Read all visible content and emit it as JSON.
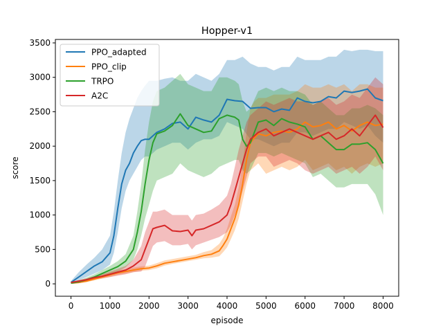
{
  "chart_data": {
    "type": "line",
    "title": "Hopper-v1",
    "xlabel": "episode",
    "ylabel": "score",
    "xlim": [
      -400,
      8400
    ],
    "ylim": [
      -180,
      3550
    ],
    "xticks": [
      0,
      1000,
      2000,
      3000,
      4000,
      5000,
      6000,
      7000,
      8000
    ],
    "yticks": [
      0,
      500,
      1000,
      1500,
      2000,
      2500,
      3000,
      3500
    ],
    "grid": false,
    "legend": "top-left",
    "series": [
      {
        "name": "PPO_adapted",
        "color": "#1f77b4",
        "x": [
          0,
          200,
          400,
          600,
          800,
          1000,
          1100,
          1200,
          1300,
          1400,
          1500,
          1600,
          1700,
          1800,
          1900,
          2000,
          2200,
          2400,
          2600,
          2800,
          3000,
          3200,
          3400,
          3600,
          3800,
          4000,
          4200,
          4400,
          4600,
          4800,
          5000,
          5200,
          5400,
          5600,
          5800,
          6000,
          6200,
          6400,
          6600,
          6800,
          7000,
          7200,
          7400,
          7600,
          7800,
          8000
        ],
        "y": [
          20,
          100,
          180,
          260,
          320,
          450,
          700,
          1100,
          1450,
          1650,
          1750,
          1900,
          2000,
          2080,
          2100,
          2100,
          2200,
          2250,
          2330,
          2350,
          2250,
          2420,
          2380,
          2350,
          2450,
          2680,
          2660,
          2650,
          2550,
          2560,
          2560,
          2500,
          2540,
          2520,
          2700,
          2650,
          2630,
          2650,
          2720,
          2700,
          2800,
          2780,
          2800,
          2830,
          2700,
          2660
        ],
        "lower": [
          10,
          50,
          100,
          150,
          200,
          280,
          450,
          750,
          1100,
          1350,
          1500,
          1600,
          1700,
          1800,
          1850,
          1850,
          1950,
          2000,
          2050,
          2050,
          1950,
          2050,
          2100,
          2100,
          2150,
          2350,
          2300,
          2250,
          2100,
          2100,
          2050,
          2000,
          2050,
          2050,
          2200,
          2200,
          2150,
          2200,
          2250,
          2250,
          2350,
          2300,
          2250,
          2300,
          2150,
          2050
        ],
        "upper": [
          40,
          170,
          280,
          380,
          500,
          700,
          1050,
          1500,
          1900,
          2200,
          2400,
          2550,
          2700,
          2800,
          2880,
          2950,
          2950,
          2980,
          3000,
          2950,
          2950,
          3050,
          3000,
          2950,
          3050,
          3250,
          3250,
          3300,
          3200,
          3150,
          3150,
          3100,
          3150,
          3150,
          3300,
          3250,
          3250,
          3250,
          3300,
          3300,
          3400,
          3380,
          3400,
          3400,
          3380,
          3380
        ]
      },
      {
        "name": "PPO_clip",
        "color": "#ff7f0e",
        "x": [
          0,
          200,
          400,
          600,
          800,
          1000,
          1200,
          1400,
          1600,
          1800,
          2000,
          2200,
          2400,
          2600,
          2800,
          3000,
          3200,
          3400,
          3600,
          3800,
          3900,
          4000,
          4100,
          4200,
          4300,
          4400,
          4500,
          4600,
          4700,
          4800,
          5000,
          5200,
          5400,
          5600,
          5800,
          6000,
          6200,
          6400,
          6600,
          6800,
          7000,
          7200,
          7400,
          7600,
          7800,
          8000
        ],
        "y": [
          10,
          20,
          40,
          70,
          100,
          130,
          160,
          180,
          200,
          220,
          230,
          260,
          300,
          320,
          340,
          360,
          380,
          410,
          430,
          480,
          560,
          650,
          800,
          950,
          1150,
          1450,
          1800,
          2050,
          2120,
          2180,
          2150,
          2200,
          2220,
          2200,
          2250,
          2350,
          2280,
          2300,
          2350,
          2250,
          2300,
          2220,
          2300,
          2350,
          2300,
          2320
        ],
        "lower": [
          0,
          10,
          25,
          50,
          75,
          100,
          130,
          150,
          170,
          190,
          200,
          225,
          265,
          290,
          310,
          330,
          350,
          370,
          380,
          400,
          460,
          530,
          650,
          780,
          950,
          1200,
          1450,
          1650,
          1700,
          1750,
          1600,
          1650,
          1700,
          1650,
          1700,
          1800,
          1650,
          1700,
          1750,
          1650,
          1700,
          1600,
          1700,
          1750,
          1700,
          1750
        ],
        "upper": [
          20,
          35,
          60,
          95,
          130,
          165,
          195,
          215,
          235,
          255,
          265,
          300,
          340,
          360,
          380,
          400,
          420,
          460,
          490,
          580,
          670,
          800,
          980,
          1150,
          1400,
          1750,
          2200,
          2550,
          2650,
          2700,
          2700,
          2750,
          2750,
          2750,
          2800,
          2900,
          2850,
          2850,
          2900,
          2850,
          2900,
          2800,
          2900,
          2900,
          2850,
          2850
        ]
      },
      {
        "name": "TRPO",
        "color": "#2ca02c",
        "x": [
          0,
          200,
          400,
          600,
          800,
          1000,
          1200,
          1400,
          1600,
          1700,
          1800,
          1900,
          2000,
          2100,
          2200,
          2400,
          2600,
          2800,
          3000,
          3200,
          3400,
          3600,
          3800,
          4000,
          4200,
          4300,
          4400,
          4500,
          4600,
          4800,
          5000,
          5200,
          5400,
          5600,
          5800,
          6000,
          6200,
          6400,
          6600,
          6800,
          7000,
          7200,
          7400,
          7600,
          7800,
          8000
        ],
        "y": [
          10,
          30,
          60,
          100,
          150,
          200,
          250,
          330,
          500,
          750,
          1050,
          1450,
          1800,
          2050,
          2180,
          2220,
          2300,
          2470,
          2300,
          2250,
          2200,
          2220,
          2400,
          2450,
          2420,
          2380,
          2100,
          2000,
          2050,
          2350,
          2380,
          2300,
          2400,
          2350,
          2320,
          2280,
          2100,
          2150,
          2050,
          1950,
          1950,
          2030,
          2030,
          2050,
          1950,
          1750
        ],
        "lower": [
          0,
          15,
          35,
          60,
          100,
          140,
          180,
          240,
          350,
          500,
          700,
          950,
          1150,
          1350,
          1500,
          1550,
          1600,
          1750,
          1650,
          1600,
          1550,
          1600,
          1700,
          1750,
          1800,
          1800,
          1650,
          1600,
          1650,
          1900,
          1900,
          1850,
          1900,
          1850,
          1800,
          1750,
          1550,
          1600,
          1500,
          1400,
          1400,
          1450,
          1450,
          1450,
          1300,
          1000
        ],
        "upper": [
          20,
          50,
          90,
          140,
          200,
          260,
          330,
          430,
          700,
          1050,
          1450,
          1950,
          2350,
          2650,
          2800,
          2850,
          2950,
          3050,
          2900,
          2850,
          2800,
          2800,
          3000,
          3000,
          2950,
          2900,
          2650,
          2500,
          2550,
          2800,
          2850,
          2800,
          2850,
          2800,
          2800,
          2750,
          2600,
          2650,
          2550,
          2450,
          2450,
          2550,
          2550,
          2600,
          2550,
          2450
        ]
      },
      {
        "name": "A2C",
        "color": "#d62728",
        "x": [
          0,
          200,
          400,
          600,
          800,
          1000,
          1200,
          1400,
          1600,
          1800,
          1900,
          2000,
          2100,
          2200,
          2400,
          2600,
          2800,
          3000,
          3100,
          3200,
          3400,
          3600,
          3800,
          4000,
          4100,
          4200,
          4300,
          4400,
          4500,
          4600,
          4700,
          4800,
          5000,
          5200,
          5400,
          5600,
          5800,
          6000,
          6200,
          6400,
          6600,
          6800,
          7000,
          7200,
          7400,
          7600,
          7800,
          8000
        ],
        "y": [
          20,
          40,
          60,
          90,
          110,
          140,
          170,
          200,
          260,
          350,
          500,
          650,
          800,
          820,
          850,
          770,
          760,
          780,
          700,
          780,
          800,
          850,
          900,
          1000,
          1150,
          1350,
          1550,
          1750,
          1950,
          2100,
          2150,
          2200,
          2250,
          2150,
          2200,
          2250,
          2200,
          2150,
          2100,
          2150,
          2200,
          2100,
          2150,
          2250,
          2150,
          2300,
          2450,
          2270
        ],
        "lower": [
          10,
          25,
          40,
          65,
          80,
          100,
          120,
          140,
          170,
          180,
          250,
          400,
          550,
          600,
          620,
          560,
          560,
          580,
          500,
          560,
          600,
          640,
          680,
          750,
          850,
          1000,
          1150,
          1350,
          1550,
          1750,
          1800,
          1850,
          1850,
          1700,
          1750,
          1800,
          1750,
          1650,
          1600,
          1650,
          1700,
          1600,
          1650,
          1700,
          1600,
          1700,
          1850,
          1650
        ],
        "upper": [
          30,
          55,
          80,
          115,
          140,
          180,
          220,
          260,
          350,
          550,
          750,
          900,
          1050,
          1050,
          1080,
          1000,
          1000,
          1000,
          920,
          1000,
          1020,
          1080,
          1150,
          1280,
          1450,
          1700,
          1950,
          2150,
          2350,
          2450,
          2500,
          2550,
          2650,
          2600,
          2650,
          2700,
          2650,
          2650,
          2600,
          2650,
          2700,
          2600,
          2650,
          2750,
          2700,
          2850,
          3000,
          2900
        ]
      }
    ]
  }
}
